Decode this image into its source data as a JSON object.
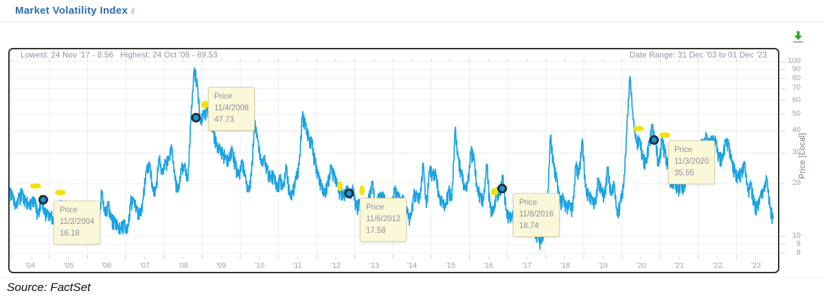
{
  "page": {
    "title": "Market Volatility Index",
    "source": "Source: FactSet"
  },
  "chart": {
    "header": {
      "lowest_label": "Lowest: 24 Nov '17 - 8.56",
      "highest_label": "Highest: 24 Oct '08 - 89.53",
      "date_range_label": "Date Range: 31 Dec '03 to 01 Dec '23"
    }
  },
  "chart_data": {
    "type": "line",
    "title": "Market Volatility Index",
    "ylabel": "Price [Local]",
    "y_scale": "log",
    "ylim": [
      8,
      100
    ],
    "y_ticks": [
      100,
      90,
      80,
      70,
      60,
      50,
      40,
      30,
      20,
      10,
      9,
      8
    ],
    "x_ticks": [
      "'04",
      "'05",
      "'06",
      "'07",
      "'08",
      "'09",
      "'10",
      "'11",
      "'12",
      "'13",
      "'14",
      "'15",
      "'16",
      "'17",
      "'18",
      "'19",
      "'20",
      "'21",
      "'22",
      "'23"
    ],
    "x_range": [
      "31 Dec '03",
      "01 Dec '23"
    ],
    "lowest": {
      "date": "24 Nov '17",
      "value": 8.56
    },
    "highest": {
      "date": "24 Oct '08",
      "value": 89.53
    },
    "grid": true,
    "legend": null,
    "series": [
      {
        "name": "Price",
        "start": "2003-12",
        "freq": "monthly",
        "note": "approximate monthly levels read from chart",
        "values": [
          18.3,
          16.6,
          14.6,
          16.7,
          17.2,
          15.5,
          15.0,
          15.3,
          15.3,
          13.3,
          16.3,
          13.2,
          13.3,
          12.8,
          12.1,
          14.0,
          15.3,
          13.3,
          12.0,
          11.6,
          12.6,
          11.9,
          15.3,
          12.0,
          12.1,
          12.9,
          12.3,
          11.7,
          11.6,
          18.0,
          13.1,
          14.9,
          12.3,
          11.9,
          11.1,
          10.9,
          11.6,
          10.4,
          15.4,
          16.0,
          14.2,
          13.1,
          16.2,
          23.5,
          26.0,
          18.0,
          18.5,
          28.0,
          22.5,
          26.2,
          27.0,
          32.2,
          20.8,
          17.8,
          23.9,
          25.0,
          20.6,
          46.7,
          89.5,
          74.0,
          44.0,
          49.0,
          52.7,
          49.0,
          39.0,
          33.0,
          31.0,
          29.0,
          28.0,
          27.0,
          31.0,
          25.0,
          22.0,
          27.0,
          22.0,
          18.0,
          22.1,
          45.8,
          35.0,
          26.0,
          27.0,
          24.0,
          21.2,
          22.5,
          18.0,
          21.0,
          19.0,
          25.0,
          17.0,
          17.5,
          21.0,
          25.3,
          48.0,
          43.0,
          36.0,
          34.0,
          26.0,
          22.0,
          19.5,
          17.0,
          19.5,
          25.1,
          22.0,
          19.5,
          17.5,
          16.5,
          18.6,
          17.5,
          18.0,
          14.5,
          15.5,
          14.0,
          14.5,
          16.3,
          20.5,
          14.5,
          17.0,
          16.6,
          16.0,
          13.8,
          14.5,
          18.4,
          17.0,
          16.0,
          15.5,
          13.5,
          12.5,
          17.0,
          17.0,
          16.3,
          26.3,
          14.5,
          23.5,
          22.2,
          22.0,
          16.5,
          15.5,
          14.5,
          18.2,
          16.0,
          40.7,
          27.8,
          22.5,
          18.5,
          20.0,
          30.0,
          28.0,
          18.0,
          17.0,
          16.0,
          25.8,
          14.5,
          13.4,
          17.5,
          17.1,
          22.5,
          14.0,
          12.5,
          12.9,
          13.1,
          14.5,
          12.0,
          11.2,
          10.5,
          16.0,
          10.5,
          10.2,
          9.0,
          11.0,
          14.5,
          37.3,
          24.9,
          21.5,
          15.4,
          16.1,
          14.5,
          15.0,
          14.0,
          25.2,
          22.5,
          36.1,
          19.0,
          17.0,
          16.5,
          15.0,
          20.8,
          18.0,
          16.5,
          24.6,
          17.0,
          20.0,
          13.0,
          15.5,
          18.8,
          40.1,
          82.7,
          46.0,
          34.0,
          36.0,
          28.0,
          26.0,
          33.6,
          41.2,
          35.5,
          25.0,
          35.0,
          30.0,
          25.0,
          19.0,
          21.5,
          18.0,
          20.0,
          18.0,
          25.7,
          23.0,
          28.6,
          22.0,
          32.0,
          33.5,
          36.5,
          33.5,
          35.5,
          34.0,
          28.0,
          27.0,
          34.9,
          33.6,
          26.0,
          23.0,
          21.5,
          23.0,
          26.5,
          18.0,
          20.0,
          15.0,
          14.5,
          17.0,
          18.0,
          21.5,
          14.5,
          12.6
        ]
      }
    ],
    "annotations": [
      {
        "label": "Price",
        "date": "11/2/2004",
        "value": "16.18",
        "t": 2004.84
      },
      {
        "label": "Price",
        "date": "11/4/2008",
        "value": "47.73",
        "t": 2008.84
      },
      {
        "label": "Price",
        "date": "11/6/2012",
        "value": "17.58",
        "t": 2012.85
      },
      {
        "label": "Price",
        "date": "11/8/2016",
        "value": "18.74",
        "t": 2016.86
      },
      {
        "label": "Price",
        "date": "11/3/2020",
        "value": "35.55",
        "t": 2020.84
      }
    ],
    "highlight_markers": [
      {
        "t": 2004.64,
        "value": 19.4,
        "shape": "h"
      },
      {
        "t": 2005.29,
        "value": 17.8,
        "shape": "h"
      },
      {
        "t": 2009.08,
        "value": 56.6,
        "shape": "o"
      },
      {
        "t": 2012.61,
        "value": 19.4,
        "shape": "v"
      },
      {
        "t": 2013.19,
        "value": 18.3,
        "shape": "v"
      },
      {
        "t": 2016.66,
        "value": 18.0,
        "shape": "o"
      },
      {
        "t": 2020.43,
        "value": 41.3,
        "shape": "h"
      },
      {
        "t": 2021.12,
        "value": 38.0,
        "shape": "h"
      }
    ],
    "colors": {
      "line": "#1ba3e3",
      "marker_fill": "#1793d3",
      "marker_stroke": "#222c38",
      "highlight": "#f2e40b",
      "tooltip_bg": "#fbf8d9",
      "grid": "#e9edf0",
      "axis_text": "#97a1ac",
      "header_text": "#8a93a1",
      "title": "#2b6cab",
      "download_green": "#33a62b"
    }
  }
}
